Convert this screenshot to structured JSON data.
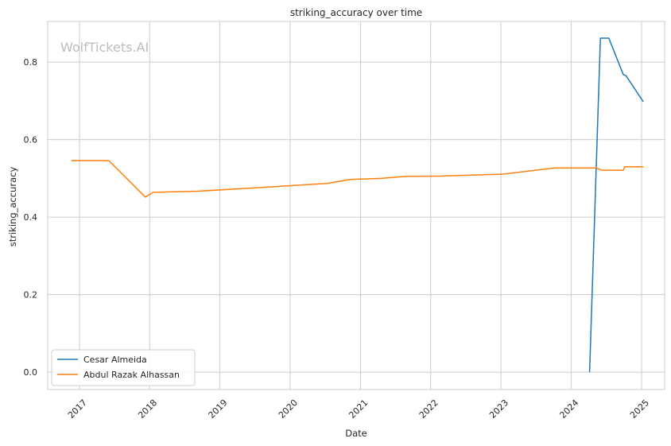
{
  "chart_data": {
    "type": "line",
    "title": "striking_accuracy over time",
    "xlabel": "Date",
    "ylabel": "striking_accuracy",
    "watermark": "WolfTickets.AI",
    "x_ticks": [
      "2017",
      "2018",
      "2019",
      "2020",
      "2021",
      "2022",
      "2023",
      "2024",
      "2025"
    ],
    "y_ticks": [
      "0.0",
      "0.2",
      "0.4",
      "0.6",
      "0.8"
    ],
    "xlim": [
      "2016-07-20",
      "2025-05-01"
    ],
    "ylim": [
      -0.045,
      0.905
    ],
    "grid": true,
    "legend_position": "lower-left",
    "series": [
      {
        "name": "Cesar Almeida",
        "color": "#1f77b4",
        "points": [
          [
            "2024-04-06",
            0.0
          ],
          [
            "2024-06-01",
            0.862
          ],
          [
            "2024-07-15",
            0.862
          ],
          [
            "2024-09-28",
            0.768
          ],
          [
            "2024-10-12",
            0.765
          ],
          [
            "2025-01-10",
            0.698
          ]
        ]
      },
      {
        "name": "Abdul Razak Alhassan",
        "color": "#ff7f0e",
        "points": [
          [
            "2016-11-19",
            0.546
          ],
          [
            "2017-06-03",
            0.546
          ],
          [
            "2017-12-09",
            0.452
          ],
          [
            "2018-01-20",
            0.464
          ],
          [
            "2018-09-08",
            0.467
          ],
          [
            "2019-07-13",
            0.476
          ],
          [
            "2020-07-11",
            0.487
          ],
          [
            "2020-11-07",
            0.497
          ],
          [
            "2021-04-17",
            0.5
          ],
          [
            "2021-08-21",
            0.505
          ],
          [
            "2022-02-19",
            0.506
          ],
          [
            "2023-01-14",
            0.511
          ],
          [
            "2023-10-07",
            0.527
          ],
          [
            "2024-05-11",
            0.527
          ],
          [
            "2024-06-08",
            0.521
          ],
          [
            "2024-09-28",
            0.521
          ],
          [
            "2024-10-05",
            0.53
          ],
          [
            "2025-01-11",
            0.53
          ]
        ]
      }
    ]
  }
}
